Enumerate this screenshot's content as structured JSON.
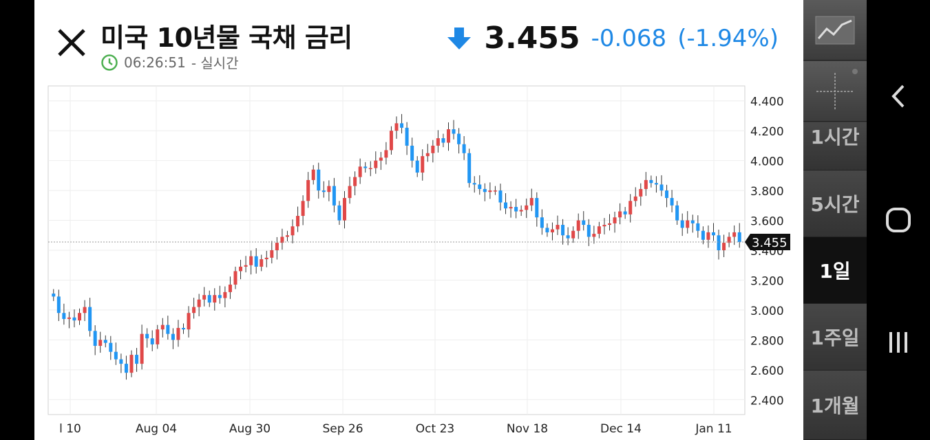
{
  "header": {
    "title": "미국 10년물 국채 금리",
    "time": "06:26:51",
    "time_suffix": "- 실시간",
    "price": "3.455",
    "change": "-0.068",
    "change_pct": "(-1.94%)"
  },
  "colors": {
    "up": "#e04848",
    "down": "#2196f3",
    "accent": "#1e88e5",
    "clock": "#4caf50"
  },
  "chart_data": {
    "type": "candlestick",
    "xlabel": "",
    "ylabel": "",
    "ylim": [
      2.3,
      4.5
    ],
    "yticks": [
      "4.400",
      "4.200",
      "4.000",
      "3.800",
      "3.600",
      "3.400",
      "3.200",
      "3.000",
      "2.800",
      "2.600",
      "2.400"
    ],
    "x_labels": [
      "l 10",
      "Aug 04",
      "Aug 30",
      "Sep 26",
      "Oct 23",
      "Nov 18",
      "Dec 14",
      "Jan 11"
    ],
    "current_value": 3.455,
    "current_label": "3.455",
    "closes": [
      3.09,
      2.98,
      2.94,
      2.95,
      2.93,
      2.98,
      3.02,
      2.86,
      2.76,
      2.8,
      2.78,
      2.72,
      2.67,
      2.64,
      2.58,
      2.7,
      2.64,
      2.84,
      2.81,
      2.77,
      2.87,
      2.9,
      2.84,
      2.8,
      2.88,
      2.87,
      2.98,
      3.02,
      3.07,
      3.1,
      3.05,
      3.1,
      3.08,
      3.12,
      3.17,
      3.26,
      3.29,
      3.3,
      3.36,
      3.29,
      3.34,
      3.35,
      3.4,
      3.45,
      3.49,
      3.5,
      3.56,
      3.63,
      3.73,
      3.87,
      3.94,
      3.8,
      3.79,
      3.83,
      3.7,
      3.6,
      3.75,
      3.83,
      3.89,
      3.96,
      3.95,
      3.95,
      4.0,
      4.02,
      4.07,
      4.2,
      4.25,
      4.22,
      4.1,
      4.0,
      3.92,
      4.03,
      4.05,
      4.1,
      4.15,
      4.12,
      4.21,
      4.18,
      4.11,
      4.05,
      3.85,
      3.84,
      3.81,
      3.79,
      3.8,
      3.8,
      3.72,
      3.68,
      3.69,
      3.66,
      3.67,
      3.7,
      3.75,
      3.62,
      3.55,
      3.52,
      3.54,
      3.57,
      3.5,
      3.48,
      3.53,
      3.6,
      3.57,
      3.49,
      3.51,
      3.56,
      3.57,
      3.58,
      3.62,
      3.66,
      3.64,
      3.73,
      3.76,
      3.81,
      3.87,
      3.85,
      3.84,
      3.8,
      3.75,
      3.7,
      3.6,
      3.55,
      3.6,
      3.58,
      3.53,
      3.47,
      3.52,
      3.5,
      3.4,
      3.45,
      3.49,
      3.52,
      3.455
    ]
  },
  "sidebar": {
    "items": [
      {
        "label": "",
        "icon": "line-chart-icon"
      },
      {
        "label": "",
        "icon": "crosshair-icon"
      },
      {
        "label": "1시간"
      },
      {
        "label": "5시간"
      },
      {
        "label": "1일"
      },
      {
        "label": "1주일"
      },
      {
        "label": "1개월"
      }
    ]
  }
}
